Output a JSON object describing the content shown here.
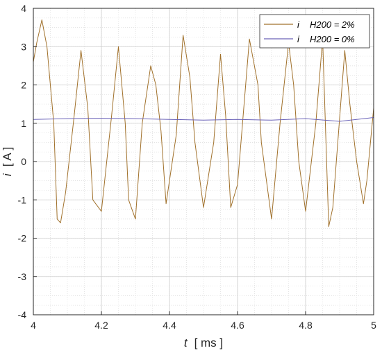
{
  "chart_data": {
    "type": "line",
    "title": "",
    "xlabel": {
      "var": "t",
      "unit": "[ ms ]"
    },
    "ylabel": {
      "var": "i",
      "unit": "[ A ]"
    },
    "xlim": [
      4,
      5
    ],
    "ylim": [
      -4,
      4
    ],
    "x_ticks": [
      "4",
      "4.2",
      "4.4",
      "4.6",
      "4.8",
      "5"
    ],
    "y_ticks": [
      "4",
      "3",
      "2",
      "1",
      "0",
      "-1",
      "-2",
      "-3",
      "-4"
    ],
    "grid": "on (major solid, minor dotted)",
    "legend_position": "top-right",
    "series": [
      {
        "name": "H200 = 2%",
        "legend_var": "i",
        "legend_label": "H200 = 2%",
        "color": "#a0702a",
        "x": [
          4.0,
          4.01,
          4.025,
          4.04,
          4.06,
          4.07,
          4.08,
          4.095,
          4.12,
          4.14,
          4.16,
          4.175,
          4.2,
          4.23,
          4.25,
          4.27,
          4.28,
          4.3,
          4.32,
          4.345,
          4.36,
          4.375,
          4.39,
          4.42,
          4.44,
          4.46,
          4.475,
          4.5,
          4.53,
          4.55,
          4.565,
          4.58,
          4.6,
          4.635,
          4.66,
          4.67,
          4.7,
          4.725,
          4.75,
          4.765,
          4.78,
          4.8,
          4.83,
          4.85,
          4.868,
          4.88,
          4.915,
          4.93,
          4.95,
          4.97,
          4.98,
          5.0
        ],
        "y": [
          2.6,
          3.1,
          3.7,
          3.0,
          1.0,
          -1.5,
          -1.6,
          -0.8,
          1.2,
          2.9,
          1.4,
          -1.0,
          -1.3,
          1.2,
          3.0,
          1.0,
          -1.0,
          -1.5,
          1.0,
          2.5,
          2.0,
          0.8,
          -1.1,
          0.7,
          3.3,
          2.2,
          0.5,
          -1.2,
          0.5,
          2.8,
          1.2,
          -1.2,
          -0.6,
          3.2,
          2.0,
          0.5,
          -1.5,
          1.0,
          3.1,
          2.0,
          0.0,
          -1.3,
          1.0,
          3.2,
          -1.7,
          -1.2,
          2.9,
          1.5,
          0.0,
          -1.1,
          -0.5,
          1.4
        ]
      },
      {
        "name": "H200 = 0%",
        "legend_var": "i",
        "legend_label": "H200 = 0%",
        "color": "#6a62b8",
        "x": [
          4.0,
          4.1,
          4.2,
          4.3,
          4.4,
          4.5,
          4.6,
          4.7,
          4.8,
          4.9,
          5.0
        ],
        "y": [
          1.1,
          1.12,
          1.13,
          1.12,
          1.1,
          1.08,
          1.1,
          1.08,
          1.12,
          1.05,
          1.15
        ]
      }
    ]
  }
}
